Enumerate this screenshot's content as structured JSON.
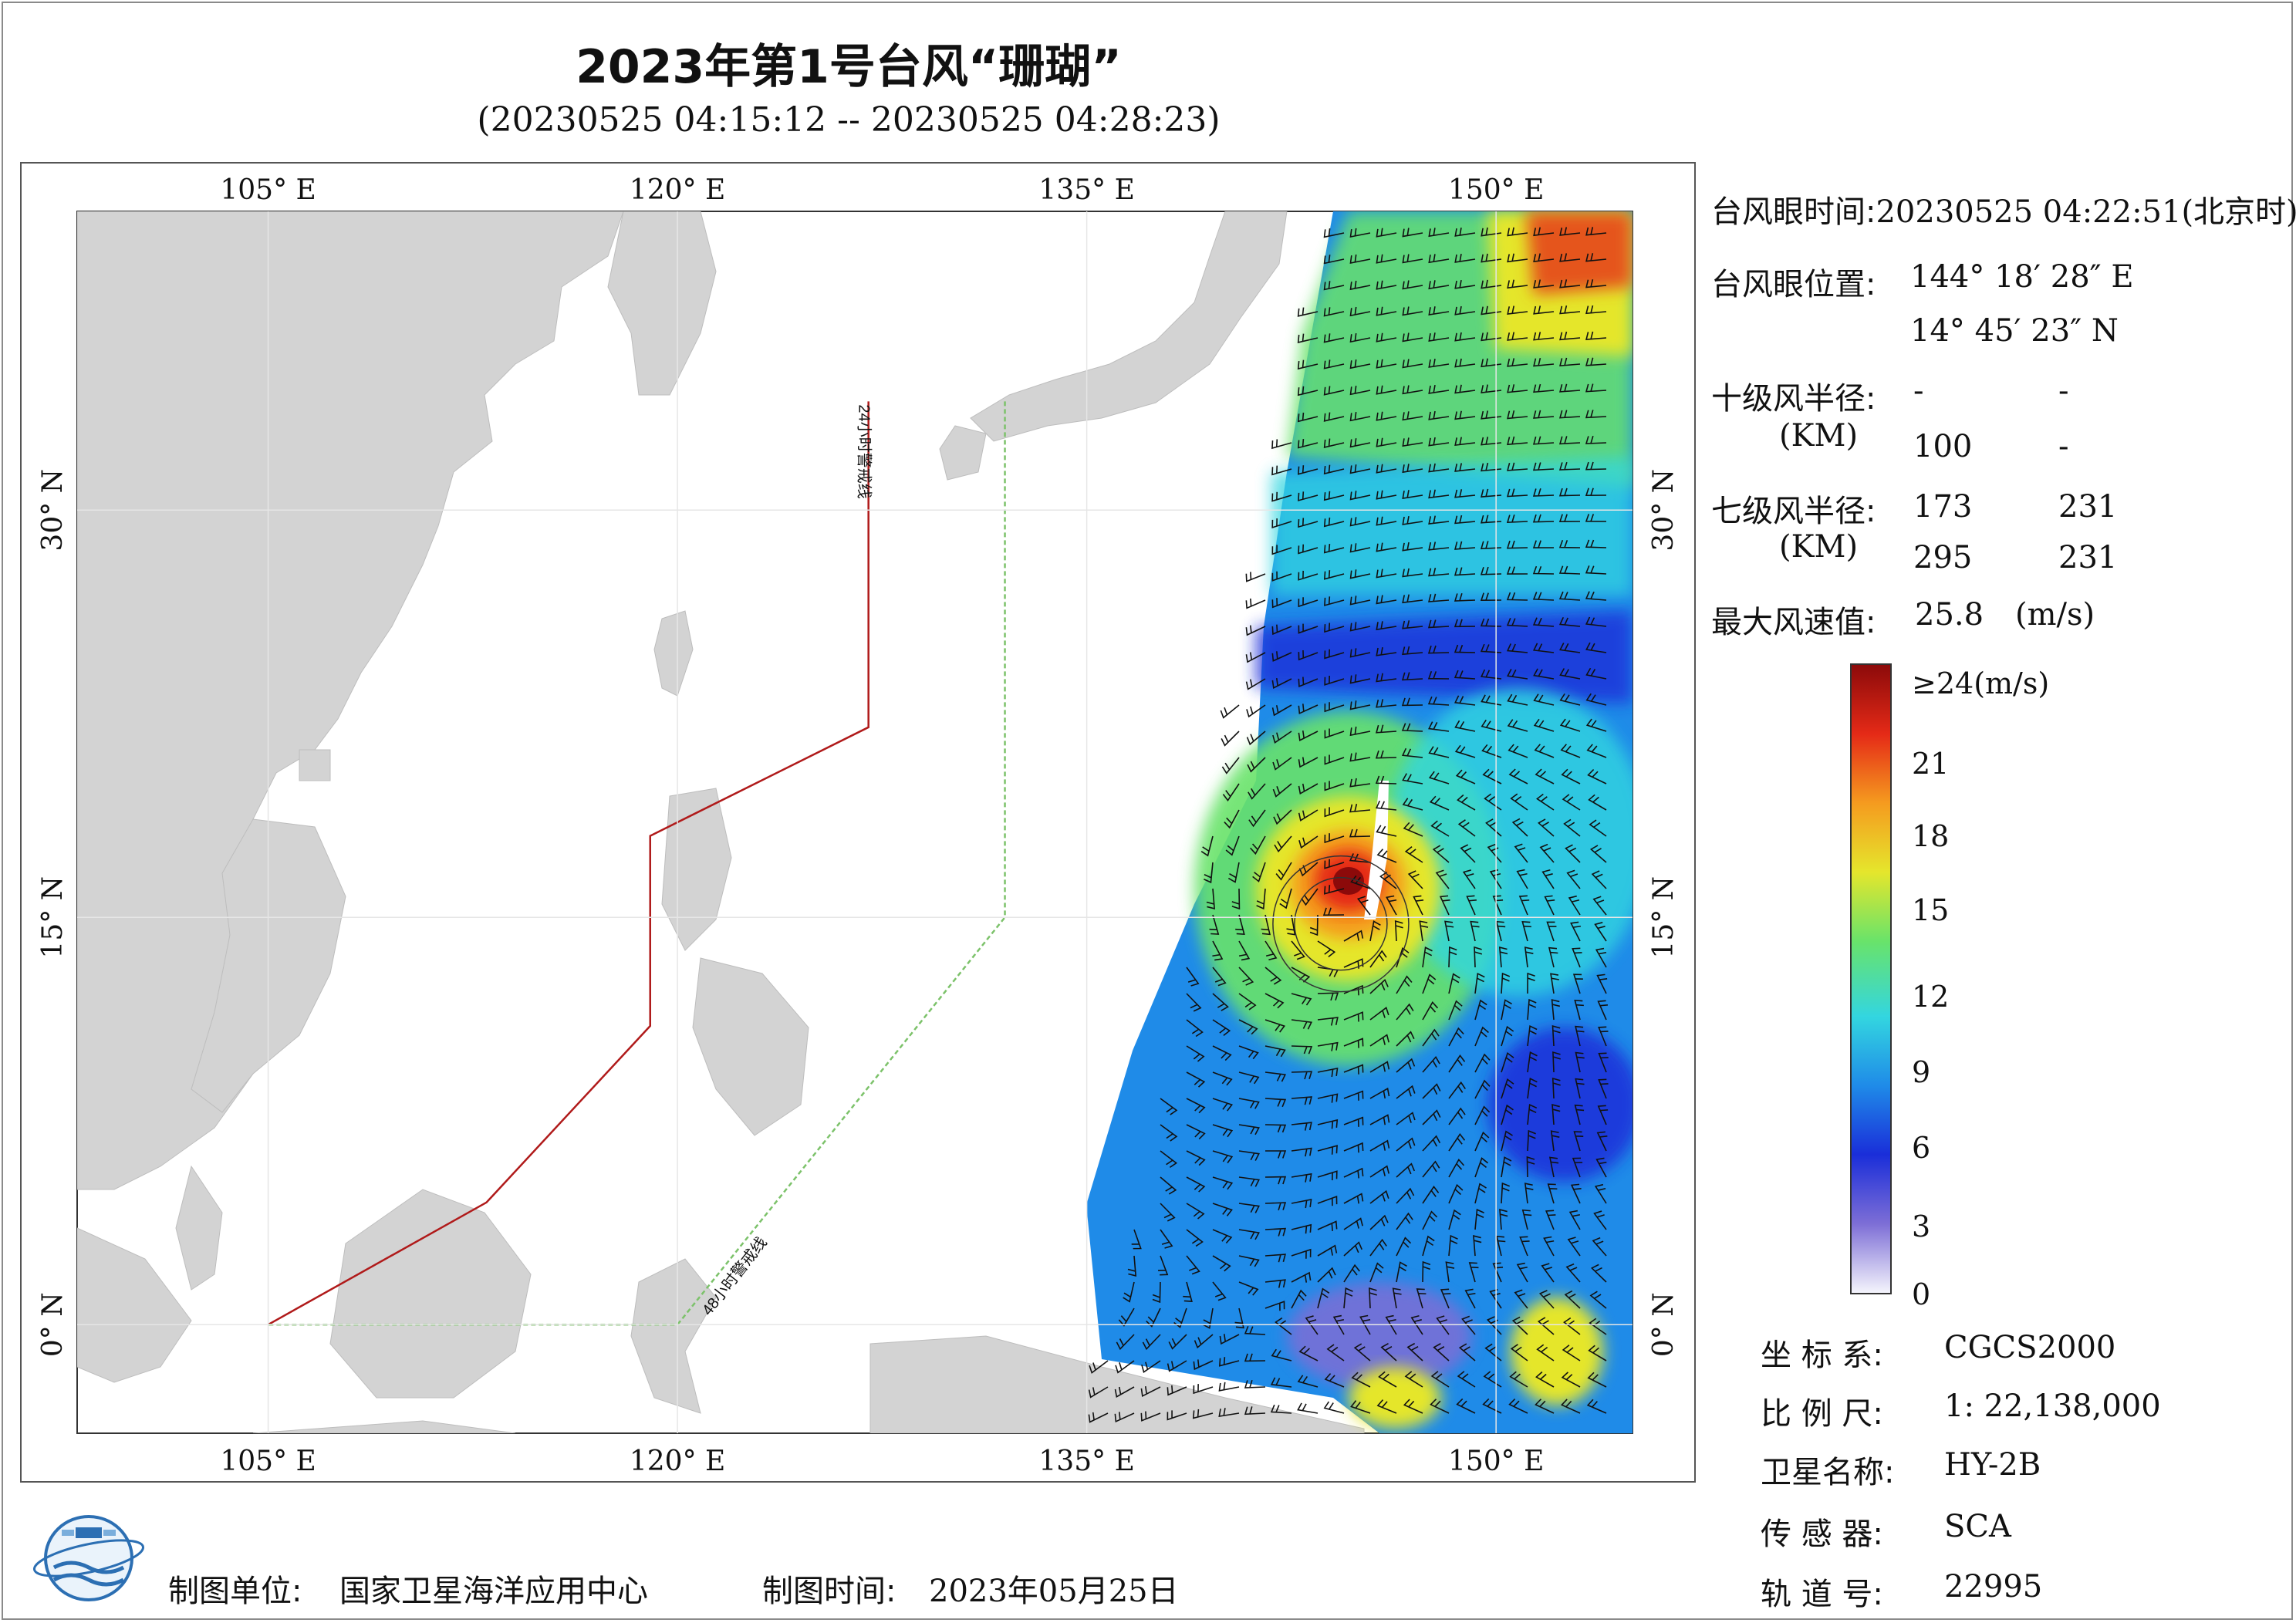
{
  "title": "2023年第1号台风“珊瑚”",
  "subtitle": "(20230525 04:15:12 -- 20230525 04:28:23)",
  "map": {
    "lon_ticks": [
      "105° E",
      "120° E",
      "135° E",
      "150° E"
    ],
    "lat_ticks": [
      "30° N",
      "15° N",
      "0° N"
    ],
    "lon_range": [
      98,
      155
    ],
    "lat_range": [
      -4,
      41
    ],
    "warning_24h": "24小时警戒线",
    "warning_48h": "48小时警戒线",
    "warning_24h_color": "#b01a1a",
    "warning_48h_color": "#7cc26a",
    "land_color": "#d3d3d3",
    "typhoon_center": {
      "lon": 144.31,
      "lat": 14.76
    }
  },
  "info": {
    "eye_time_label": "台风眼时间:",
    "eye_time_value": "20230525 04:22:51(北京时)",
    "eye_pos_label": "台风眼位置:",
    "eye_pos_lon": "144° 18′ 28″ E",
    "eye_pos_lat": "14° 45′ 23″ N",
    "r10_label": "十级风半径:",
    "r10_unit": "(KM)",
    "r10_values": [
      "-",
      "-",
      "100",
      "-"
    ],
    "r7_label": "七级风半径:",
    "r7_unit": "(KM)",
    "r7_values": [
      "173",
      "231",
      "295",
      "231"
    ],
    "max_label": "最大风速值:",
    "max_value": "25.8",
    "max_unit": "(m/s)"
  },
  "colorbar": {
    "top_label": "≥24(m/s)",
    "ticks": [
      "21",
      "18",
      "15",
      "12",
      "9",
      "6",
      "3",
      "0"
    ],
    "colors": [
      "#f4f4fc",
      "#7d6ed6",
      "#1a2ed9",
      "#1f8be8",
      "#33d6e0",
      "#69e36a",
      "#e5e62c",
      "#f59b1f",
      "#e52a17",
      "#8c0a0a"
    ]
  },
  "meta": {
    "crs_label": "坐 标 系:",
    "crs_value": "CGCS2000",
    "scale_label": "比 例 尺:",
    "scale_value": "1: 22,138,000",
    "sat_label": "卫星名称:",
    "sat_value": "HY-2B",
    "sensor_label": "传 感 器:",
    "sensor_value": "SCA",
    "orbit_label": "轨 道 号:",
    "orbit_value": "22995"
  },
  "footer": {
    "unit_label": "制图单位:",
    "unit_value": "国家卫星海洋应用中心",
    "time_label": "制图时间:",
    "time_value": "2023年05月25日"
  }
}
